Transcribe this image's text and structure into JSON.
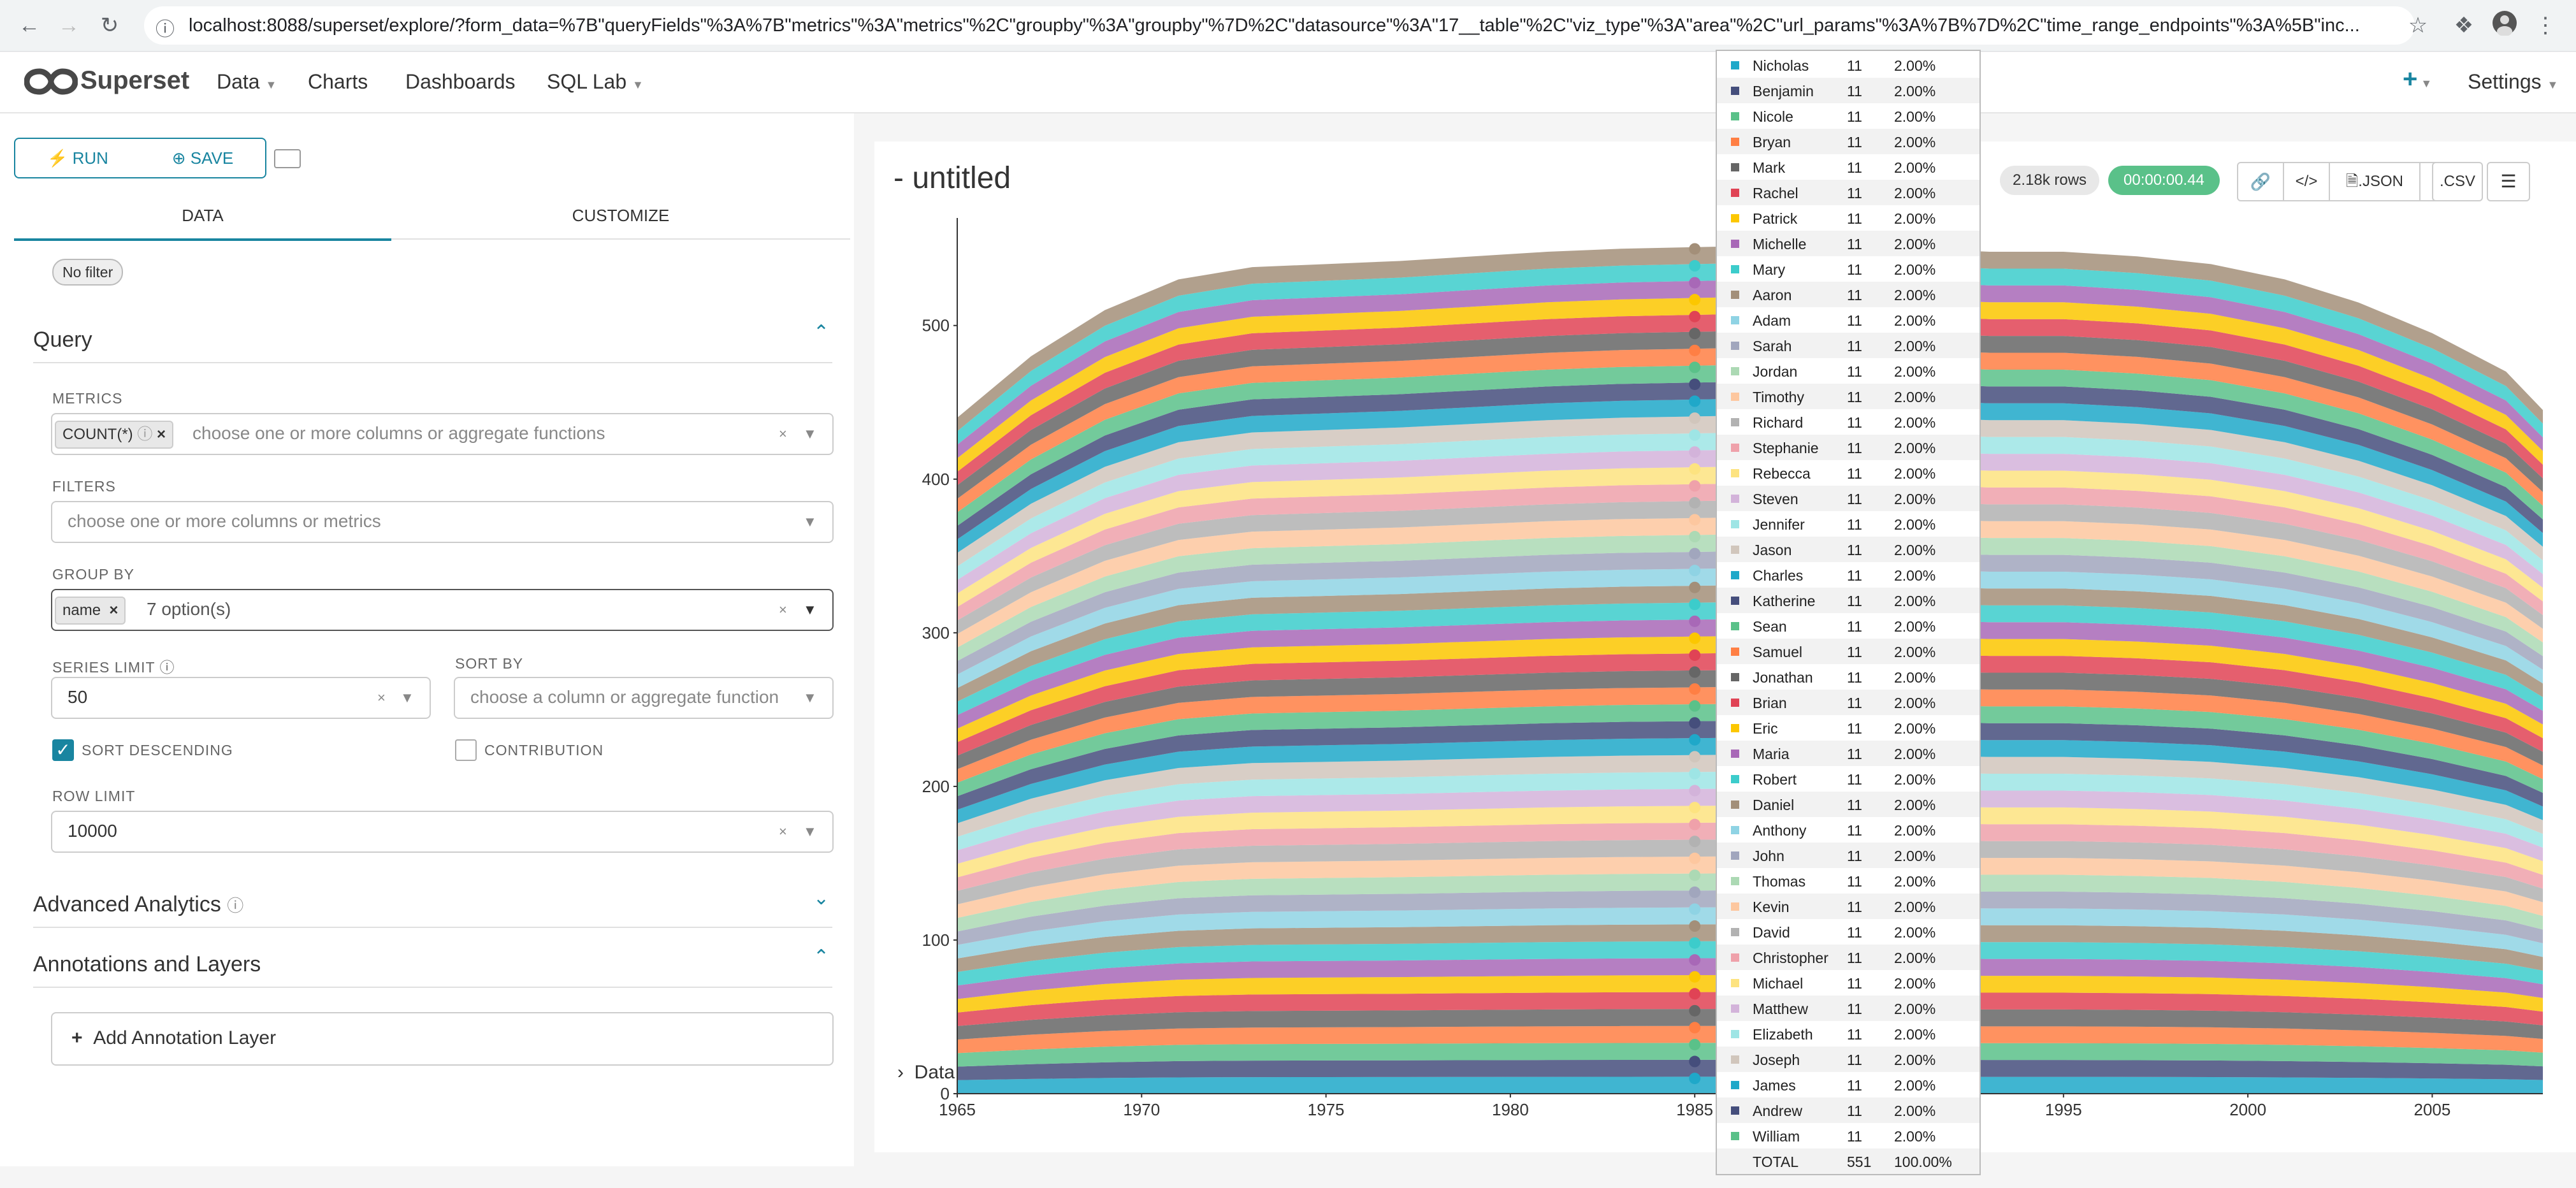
{
  "browser": {
    "url": "localhost:8088/superset/explore/?form_data=%7B\"queryFields\"%3A%7B\"metrics\"%3A\"metrics\"%2C\"groupby\"%3A\"groupby\"%7D%2C\"datasource\"%3A\"17__table\"%2C\"viz_type\"%3A\"area\"%2C\"url_params\"%3A%7B%7D%2C\"time_range_endpoints\"%3A%5B\"inc..."
  },
  "navbar": {
    "brand": "Superset",
    "items": [
      "Data",
      "Charts",
      "Dashboards",
      "SQL Lab"
    ],
    "plus": "+",
    "settings": "Settings"
  },
  "toolbar": {
    "run_label": "RUN",
    "save_label": "SAVE"
  },
  "tabs": {
    "data": "DATA",
    "customize": "CUSTOMIZE"
  },
  "filter_badge": "No filter",
  "query": {
    "title": "Query",
    "metrics_label": "METRICS",
    "metric_chip": "COUNT(*)",
    "metrics_placeholder": "choose one or more columns or aggregate functions",
    "filters_label": "FILTERS",
    "filters_placeholder": "choose one or more columns or metrics",
    "groupby_label": "GROUP BY",
    "groupby_chip": "name",
    "groupby_value": "7 option(s)",
    "series_limit_label": "SERIES LIMIT",
    "series_limit_value": "50",
    "sort_by_label": "SORT BY",
    "sort_by_placeholder": "choose a column or aggregate function",
    "sort_descending_label": "SORT DESCENDING",
    "sort_descending_checked": true,
    "contribution_label": "CONTRIBUTION",
    "contribution_checked": false,
    "row_limit_label": "ROW LIMIT",
    "row_limit_value": "10000"
  },
  "advanced": {
    "title": "Advanced Analytics"
  },
  "annotations": {
    "title": "Annotations and Layers",
    "add_label": "Add Annotation Layer"
  },
  "chart_header": {
    "title": "- untitled",
    "rows_badge": "2.18k rows",
    "timer_badge": "00:00:00.44",
    "json_label": ".JSON",
    "csv_label": ".CSV"
  },
  "data_toggle": "Data",
  "colors": {
    "accent": "#1985a0",
    "timer": "#5ac189",
    "palette": [
      "#1fa8c9",
      "#454e7c",
      "#5ac189",
      "#ff7f44",
      "#666666",
      "#e04355",
      "#fcc700",
      "#a868b7",
      "#3ccccb",
      "#a38f79",
      "#8fd3e4",
      "#a1a6bd",
      "#acd9b4",
      "#fdc79f",
      "#b2b2b2",
      "#efa1aa",
      "#fde380",
      "#d3b3da",
      "#9ee5e5",
      "#d1c6bc"
    ]
  },
  "tooltip": {
    "rows": [
      {
        "name": "Nicholas",
        "value": "11",
        "pct": "2.00%"
      },
      {
        "name": "Benjamin",
        "value": "11",
        "pct": "2.00%"
      },
      {
        "name": "Nicole",
        "value": "11",
        "pct": "2.00%"
      },
      {
        "name": "Bryan",
        "value": "11",
        "pct": "2.00%"
      },
      {
        "name": "Mark",
        "value": "11",
        "pct": "2.00%"
      },
      {
        "name": "Rachel",
        "value": "11",
        "pct": "2.00%"
      },
      {
        "name": "Patrick",
        "value": "11",
        "pct": "2.00%"
      },
      {
        "name": "Michelle",
        "value": "11",
        "pct": "2.00%"
      },
      {
        "name": "Mary",
        "value": "11",
        "pct": "2.00%"
      },
      {
        "name": "Aaron",
        "value": "11",
        "pct": "2.00%"
      },
      {
        "name": "Adam",
        "value": "11",
        "pct": "2.00%"
      },
      {
        "name": "Sarah",
        "value": "11",
        "pct": "2.00%"
      },
      {
        "name": "Jordan",
        "value": "11",
        "pct": "2.00%"
      },
      {
        "name": "Timothy",
        "value": "11",
        "pct": "2.00%"
      },
      {
        "name": "Richard",
        "value": "11",
        "pct": "2.00%"
      },
      {
        "name": "Stephanie",
        "value": "11",
        "pct": "2.00%"
      },
      {
        "name": "Rebecca",
        "value": "11",
        "pct": "2.00%"
      },
      {
        "name": "Steven",
        "value": "11",
        "pct": "2.00%"
      },
      {
        "name": "Jennifer",
        "value": "11",
        "pct": "2.00%"
      },
      {
        "name": "Jason",
        "value": "11",
        "pct": "2.00%"
      },
      {
        "name": "Charles",
        "value": "11",
        "pct": "2.00%"
      },
      {
        "name": "Katherine",
        "value": "11",
        "pct": "2.00%"
      },
      {
        "name": "Sean",
        "value": "11",
        "pct": "2.00%"
      },
      {
        "name": "Samuel",
        "value": "11",
        "pct": "2.00%"
      },
      {
        "name": "Jonathan",
        "value": "11",
        "pct": "2.00%"
      },
      {
        "name": "Brian",
        "value": "11",
        "pct": "2.00%"
      },
      {
        "name": "Eric",
        "value": "11",
        "pct": "2.00%"
      },
      {
        "name": "Maria",
        "value": "11",
        "pct": "2.00%"
      },
      {
        "name": "Robert",
        "value": "11",
        "pct": "2.00%"
      },
      {
        "name": "Daniel",
        "value": "11",
        "pct": "2.00%"
      },
      {
        "name": "Anthony",
        "value": "11",
        "pct": "2.00%"
      },
      {
        "name": "John",
        "value": "11",
        "pct": "2.00%"
      },
      {
        "name": "Thomas",
        "value": "11",
        "pct": "2.00%"
      },
      {
        "name": "Kevin",
        "value": "11",
        "pct": "2.00%"
      },
      {
        "name": "David",
        "value": "11",
        "pct": "2.00%"
      },
      {
        "name": "Christopher",
        "value": "11",
        "pct": "2.00%"
      },
      {
        "name": "Michael",
        "value": "11",
        "pct": "2.00%"
      },
      {
        "name": "Matthew",
        "value": "11",
        "pct": "2.00%"
      },
      {
        "name": "Elizabeth",
        "value": "11",
        "pct": "2.00%"
      },
      {
        "name": "Joseph",
        "value": "11",
        "pct": "2.00%"
      },
      {
        "name": "James",
        "value": "11",
        "pct": "2.00%"
      },
      {
        "name": "Andrew",
        "value": "11",
        "pct": "2.00%"
      },
      {
        "name": "William",
        "value": "11",
        "pct": "2.00%"
      }
    ],
    "total": {
      "name": "TOTAL",
      "value": "551",
      "pct": "100.00%"
    }
  },
  "chart_data": {
    "type": "area",
    "stacked": true,
    "x": [
      1965,
      1967,
      1969,
      1971,
      1973,
      1975,
      1977,
      1979,
      1981,
      1983,
      1985,
      1987,
      1989,
      1991,
      1993,
      1995,
      1997,
      1999,
      2001,
      2003,
      2004,
      2005,
      2007,
      2008
    ],
    "stack_total": [
      440,
      480,
      510,
      530,
      538,
      540,
      542,
      545,
      548,
      550,
      551,
      552,
      552,
      550,
      548,
      548,
      545,
      540,
      530,
      515,
      505,
      495,
      470,
      445
    ],
    "x_ticks": [
      1965,
      1970,
      1975,
      1980,
      1985,
      1990,
      1995,
      2000,
      2005
    ],
    "y_ticks": [
      0,
      100,
      200,
      300,
      400,
      500
    ],
    "xlim": [
      1965,
      2008
    ],
    "ylim": [
      0,
      570
    ],
    "series_count": 50,
    "hover_x": 1985
  }
}
